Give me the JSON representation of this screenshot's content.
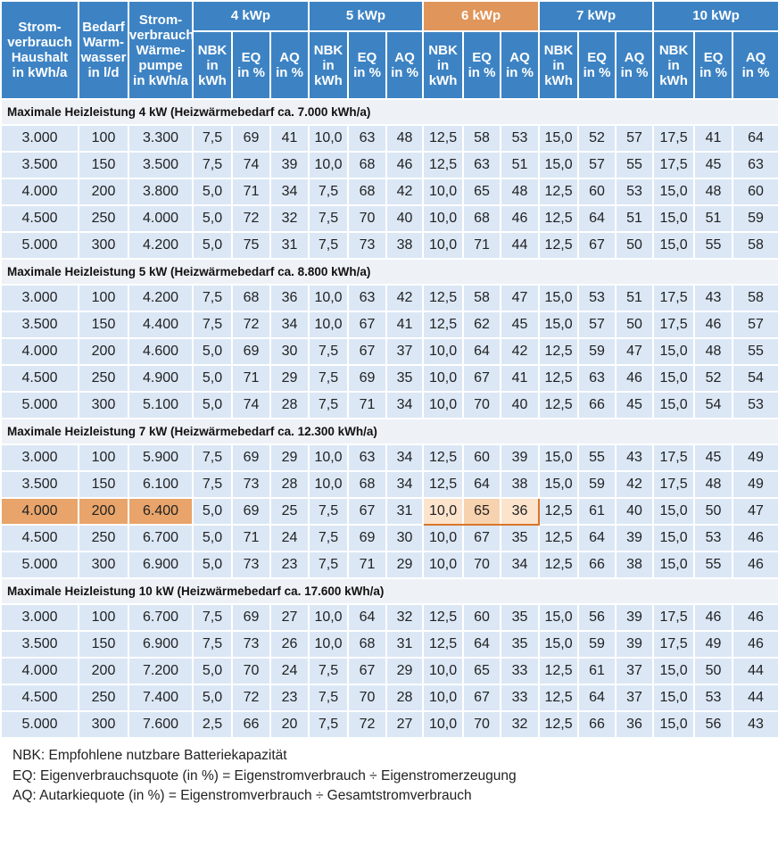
{
  "header": {
    "columns": [
      "Strom-\nverbrauch\nHaushalt\nin kWh/a",
      "Bedarf\nWarm-\nwasser\nin l/d",
      "Strom-\nverbrauch\nWärme-\npumpe\nin kWh/a"
    ],
    "groups": [
      "4 kWp",
      "5 kWp",
      "6 kWp",
      "7 kWp",
      "10 kWp"
    ],
    "subcolumns": [
      "NBK\nin\nkWh",
      "EQ\nin %",
      "AQ\nin %"
    ]
  },
  "sections": [
    {
      "title": "Maximale Heizleistung 4 kW (Heizwärmebedarf ca. 7.000 kWh/a)",
      "rows": [
        [
          "3.000",
          "100",
          "3.300",
          "7,5",
          "69",
          "41",
          "10,0",
          "63",
          "48",
          "12,5",
          "58",
          "53",
          "15,0",
          "52",
          "57",
          "17,5",
          "41",
          "64"
        ],
        [
          "3.500",
          "150",
          "3.500",
          "7,5",
          "74",
          "39",
          "10,0",
          "68",
          "46",
          "12,5",
          "63",
          "51",
          "15,0",
          "57",
          "55",
          "17,5",
          "45",
          "63"
        ],
        [
          "4.000",
          "200",
          "3.800",
          "5,0",
          "71",
          "34",
          "7,5",
          "68",
          "42",
          "10,0",
          "65",
          "48",
          "12,5",
          "60",
          "53",
          "15,0",
          "48",
          "60"
        ],
        [
          "4.500",
          "250",
          "4.000",
          "5,0",
          "72",
          "32",
          "7,5",
          "70",
          "40",
          "10,0",
          "68",
          "46",
          "12,5",
          "64",
          "51",
          "15,0",
          "51",
          "59"
        ],
        [
          "5.000",
          "300",
          "4.200",
          "5,0",
          "75",
          "31",
          "7,5",
          "73",
          "38",
          "10,0",
          "71",
          "44",
          "12,5",
          "67",
          "50",
          "15,0",
          "55",
          "58"
        ]
      ]
    },
    {
      "title": "Maximale Heizleistung 5 kW (Heizwärmebedarf ca. 8.800 kWh/a)",
      "rows": [
        [
          "3.000",
          "100",
          "4.200",
          "7,5",
          "68",
          "36",
          "10,0",
          "63",
          "42",
          "12,5",
          "58",
          "47",
          "15,0",
          "53",
          "51",
          "17,5",
          "43",
          "58"
        ],
        [
          "3.500",
          "150",
          "4.400",
          "7,5",
          "72",
          "34",
          "10,0",
          "67",
          "41",
          "12,5",
          "62",
          "45",
          "15,0",
          "57",
          "50",
          "17,5",
          "46",
          "57"
        ],
        [
          "4.000",
          "200",
          "4.600",
          "5,0",
          "69",
          "30",
          "7,5",
          "67",
          "37",
          "10,0",
          "64",
          "42",
          "12,5",
          "59",
          "47",
          "15,0",
          "48",
          "55"
        ],
        [
          "4.500",
          "250",
          "4.900",
          "5,0",
          "71",
          "29",
          "7,5",
          "69",
          "35",
          "10,0",
          "67",
          "41",
          "12,5",
          "63",
          "46",
          "15,0",
          "52",
          "54"
        ],
        [
          "5.000",
          "300",
          "5.100",
          "5,0",
          "74",
          "28",
          "7,5",
          "71",
          "34",
          "10,0",
          "70",
          "40",
          "12,5",
          "66",
          "45",
          "15,0",
          "54",
          "53"
        ]
      ]
    },
    {
      "title": "Maximale Heizleistung 7 kW (Heizwärmebedarf ca. 12.300 kWh/a)",
      "rows": [
        [
          "3.000",
          "100",
          "5.900",
          "7,5",
          "69",
          "29",
          "10,0",
          "63",
          "34",
          "12,5",
          "60",
          "39",
          "15,0",
          "55",
          "43",
          "17,5",
          "45",
          "49"
        ],
        [
          "3.500",
          "150",
          "6.100",
          "7,5",
          "73",
          "28",
          "10,0",
          "68",
          "34",
          "12,5",
          "64",
          "38",
          "15,0",
          "59",
          "42",
          "17,5",
          "48",
          "49"
        ],
        [
          "4.000",
          "200",
          "6.400",
          "5,0",
          "69",
          "25",
          "7,5",
          "67",
          "31",
          "10,0",
          "65",
          "36",
          "12,5",
          "61",
          "40",
          "15,0",
          "50",
          "47"
        ],
        [
          "4.500",
          "250",
          "6.700",
          "5,0",
          "71",
          "24",
          "7,5",
          "69",
          "30",
          "10,0",
          "67",
          "35",
          "12,5",
          "64",
          "39",
          "15,0",
          "53",
          "46"
        ],
        [
          "5.000",
          "300",
          "6.900",
          "5,0",
          "73",
          "23",
          "7,5",
          "71",
          "29",
          "10,0",
          "70",
          "34",
          "12,5",
          "66",
          "38",
          "15,0",
          "55",
          "46"
        ]
      ]
    },
    {
      "title": "Maximale Heizleistung 10 kW (Heizwärmebedarf ca. 17.600 kWh/a)",
      "rows": [
        [
          "3.000",
          "100",
          "6.700",
          "7,5",
          "69",
          "27",
          "10,0",
          "64",
          "32",
          "12,5",
          "60",
          "35",
          "15,0",
          "56",
          "39",
          "17,5",
          "46",
          "46"
        ],
        [
          "3.500",
          "150",
          "6.900",
          "7,5",
          "73",
          "26",
          "10,0",
          "68",
          "31",
          "12,5",
          "64",
          "35",
          "15,0",
          "59",
          "39",
          "17,5",
          "49",
          "46"
        ],
        [
          "4.000",
          "200",
          "7.200",
          "5,0",
          "70",
          "24",
          "7,5",
          "67",
          "29",
          "10,0",
          "65",
          "33",
          "12,5",
          "61",
          "37",
          "15,0",
          "50",
          "44"
        ],
        [
          "4.500",
          "250",
          "7.400",
          "5,0",
          "72",
          "23",
          "7,5",
          "70",
          "28",
          "10,0",
          "67",
          "33",
          "12,5",
          "64",
          "37",
          "15,0",
          "53",
          "44"
        ],
        [
          "5.000",
          "300",
          "7.600",
          "2,5",
          "66",
          "20",
          "7,5",
          "72",
          "27",
          "10,0",
          "70",
          "32",
          "12,5",
          "66",
          "36",
          "15,0",
          "56",
          "43"
        ]
      ]
    }
  ],
  "footnotes": [
    "NBK: Empfohlene nutzbare Batteriekapazität",
    "EQ: Eigenverbrauchsquote (in %) = Eigenstromverbrauch ÷ Eigenstromerzeugung",
    "AQ: Autarkiequote (in %) = Eigenstromverbrauch ÷ Gesamtstromverbrauch"
  ]
}
